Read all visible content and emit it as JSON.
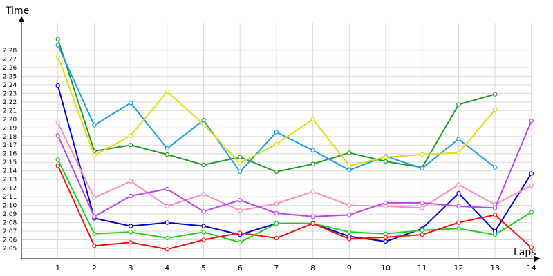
{
  "chart_data": {
    "type": "line",
    "ylabel": "Time",
    "xlabel": "Laps",
    "x": [
      1,
      2,
      3,
      4,
      5,
      6,
      7,
      8,
      9,
      10,
      11,
      12,
      13,
      14
    ],
    "y_ticks": [
      "2:05",
      "2:06",
      "2:07",
      "2:08",
      "2:09",
      "2:10",
      "2:11",
      "2:12",
      "2:13",
      "2:14",
      "2:15",
      "2:16",
      "2:17",
      "2:18",
      "2:19",
      "2:20",
      "2:21",
      "2:22",
      "2:23",
      "2:24",
      "2:25",
      "2:26",
      "2:27",
      "2:28"
    ],
    "y_tick_values": [
      125,
      126,
      127,
      128,
      129,
      130,
      131,
      132,
      133,
      134,
      135,
      136,
      137,
      138,
      139,
      140,
      141,
      142,
      143,
      144,
      145,
      146,
      147,
      148
    ],
    "ylim": [
      123.8,
      151.6
    ],
    "xlim": [
      0,
      14
    ],
    "grid": "horizontal",
    "series": [
      {
        "color": "#1f9c1f",
        "values": [
          149.3,
          136.3,
          137.0,
          135.9,
          134.7,
          135.6,
          133.9,
          134.8,
          136.1,
          135.1,
          134.4,
          141.7,
          142.9,
          null
        ]
      },
      {
        "color": "#1a9ee6",
        "values": [
          148.6,
          139.3,
          141.9,
          136.6,
          139.9,
          133.9,
          138.5,
          136.4,
          134.1,
          135.7,
          134.3,
          137.7,
          134.4,
          null
        ]
      },
      {
        "color": "#dddd10",
        "values": [
          147.3,
          135.8,
          138.1,
          143.2,
          139.4,
          134.9,
          137.1,
          140.0,
          134.6,
          135.6,
          135.9,
          136.1,
          141.1,
          null
        ]
      },
      {
        "color": "#0000dd",
        "values": [
          143.9,
          128.5,
          127.6,
          128.0,
          127.6,
          126.6,
          127.9,
          127.9,
          126.4,
          125.8,
          127.3,
          131.4,
          127.0,
          133.7
        ]
      },
      {
        "color": "#ff88bb",
        "values": [
          139.6,
          130.9,
          132.8,
          129.9,
          131.3,
          129.4,
          130.2,
          131.6,
          130.0,
          129.9,
          129.7,
          132.4,
          130.1,
          132.3
        ]
      },
      {
        "color": "#bb44ee",
        "values": [
          138.1,
          128.7,
          131.1,
          131.9,
          129.3,
          130.6,
          129.1,
          128.7,
          128.9,
          130.3,
          130.3,
          129.9,
          129.7,
          139.8
        ]
      },
      {
        "color": "#22cc22",
        "values": [
          135.3,
          126.7,
          126.9,
          126.2,
          126.9,
          125.7,
          127.9,
          127.9,
          126.9,
          126.7,
          127.1,
          127.3,
          126.6,
          129.2
        ]
      },
      {
        "color": "#ee1111",
        "values": [
          134.6,
          125.3,
          125.7,
          124.9,
          126.0,
          126.8,
          126.2,
          127.9,
          126.1,
          126.3,
          126.6,
          128.0,
          128.9,
          125.1
        ]
      }
    ]
  }
}
